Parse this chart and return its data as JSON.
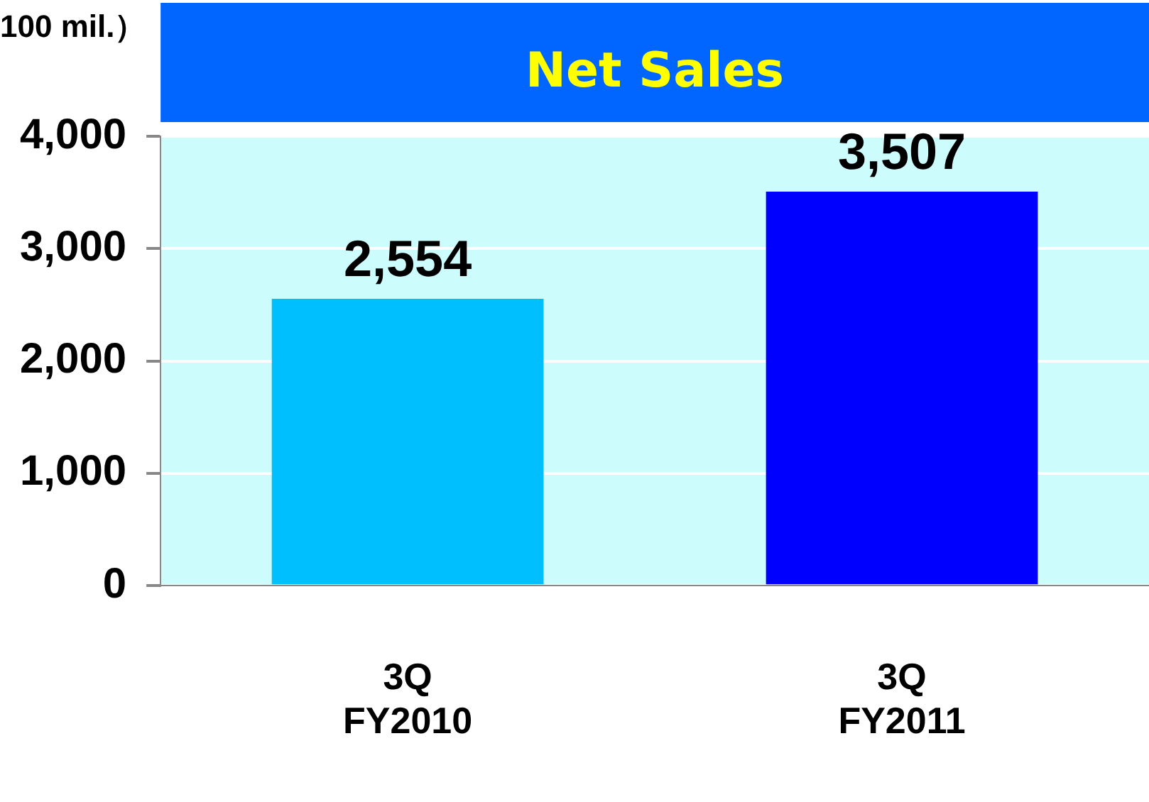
{
  "chart_data": {
    "type": "bar",
    "title": "Net Sales",
    "ylabel": "100 mil.）",
    "categories": [
      "3Q\nFY2010",
      "3Q\nFY2011"
    ],
    "values": [
      2554,
      3507
    ],
    "value_labels": [
      "2,554",
      "3,507"
    ],
    "colors": [
      "#00bfff",
      "#0000ff"
    ],
    "ylim": [
      0,
      4000
    ],
    "yticks": [
      {
        "value": 0,
        "label": "0"
      },
      {
        "value": 1000,
        "label": "1,000"
      },
      {
        "value": 2000,
        "label": "2,000"
      },
      {
        "value": 3000,
        "label": "3,000"
      },
      {
        "value": 4000,
        "label": "4,000"
      }
    ],
    "grid": "y",
    "legend": false
  }
}
